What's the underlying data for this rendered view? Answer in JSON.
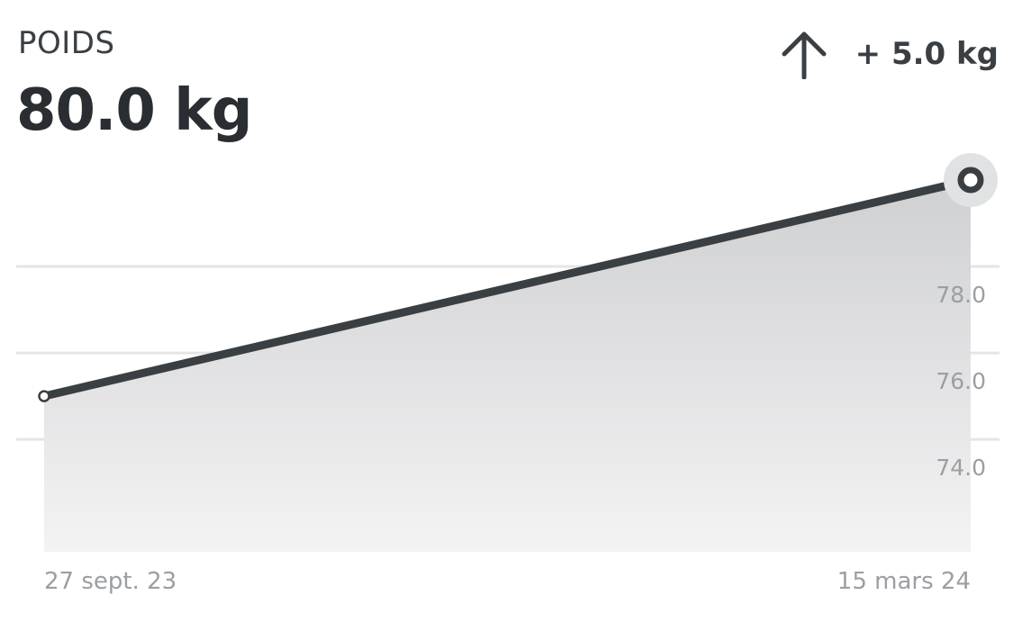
{
  "header": {
    "label": "POIDS",
    "value": "80.0 kg",
    "delta_text": "+ 5.0 kg",
    "delta_icon": "arrow-up-icon"
  },
  "colors": {
    "line": "#3a3f44",
    "grid": "#e4e5e6",
    "label": "#9b9ea2",
    "fill_top": "#cfd0d2",
    "fill_bottom": "#f3f3f4",
    "halo": "#e1e2e4"
  },
  "chart_data": {
    "type": "area",
    "x": [
      "27 sept. 23",
      "15 mars 24"
    ],
    "series": [
      {
        "values": [
          75.0,
          80.0
        ]
      }
    ],
    "yticks": [
      "74.0",
      "76.0",
      "78.0"
    ],
    "ytick_values": [
      74,
      76,
      78
    ],
    "ylim": [
      71.4,
      80.0
    ],
    "grid": true,
    "title": "",
    "xlabel": "",
    "ylabel": ""
  }
}
